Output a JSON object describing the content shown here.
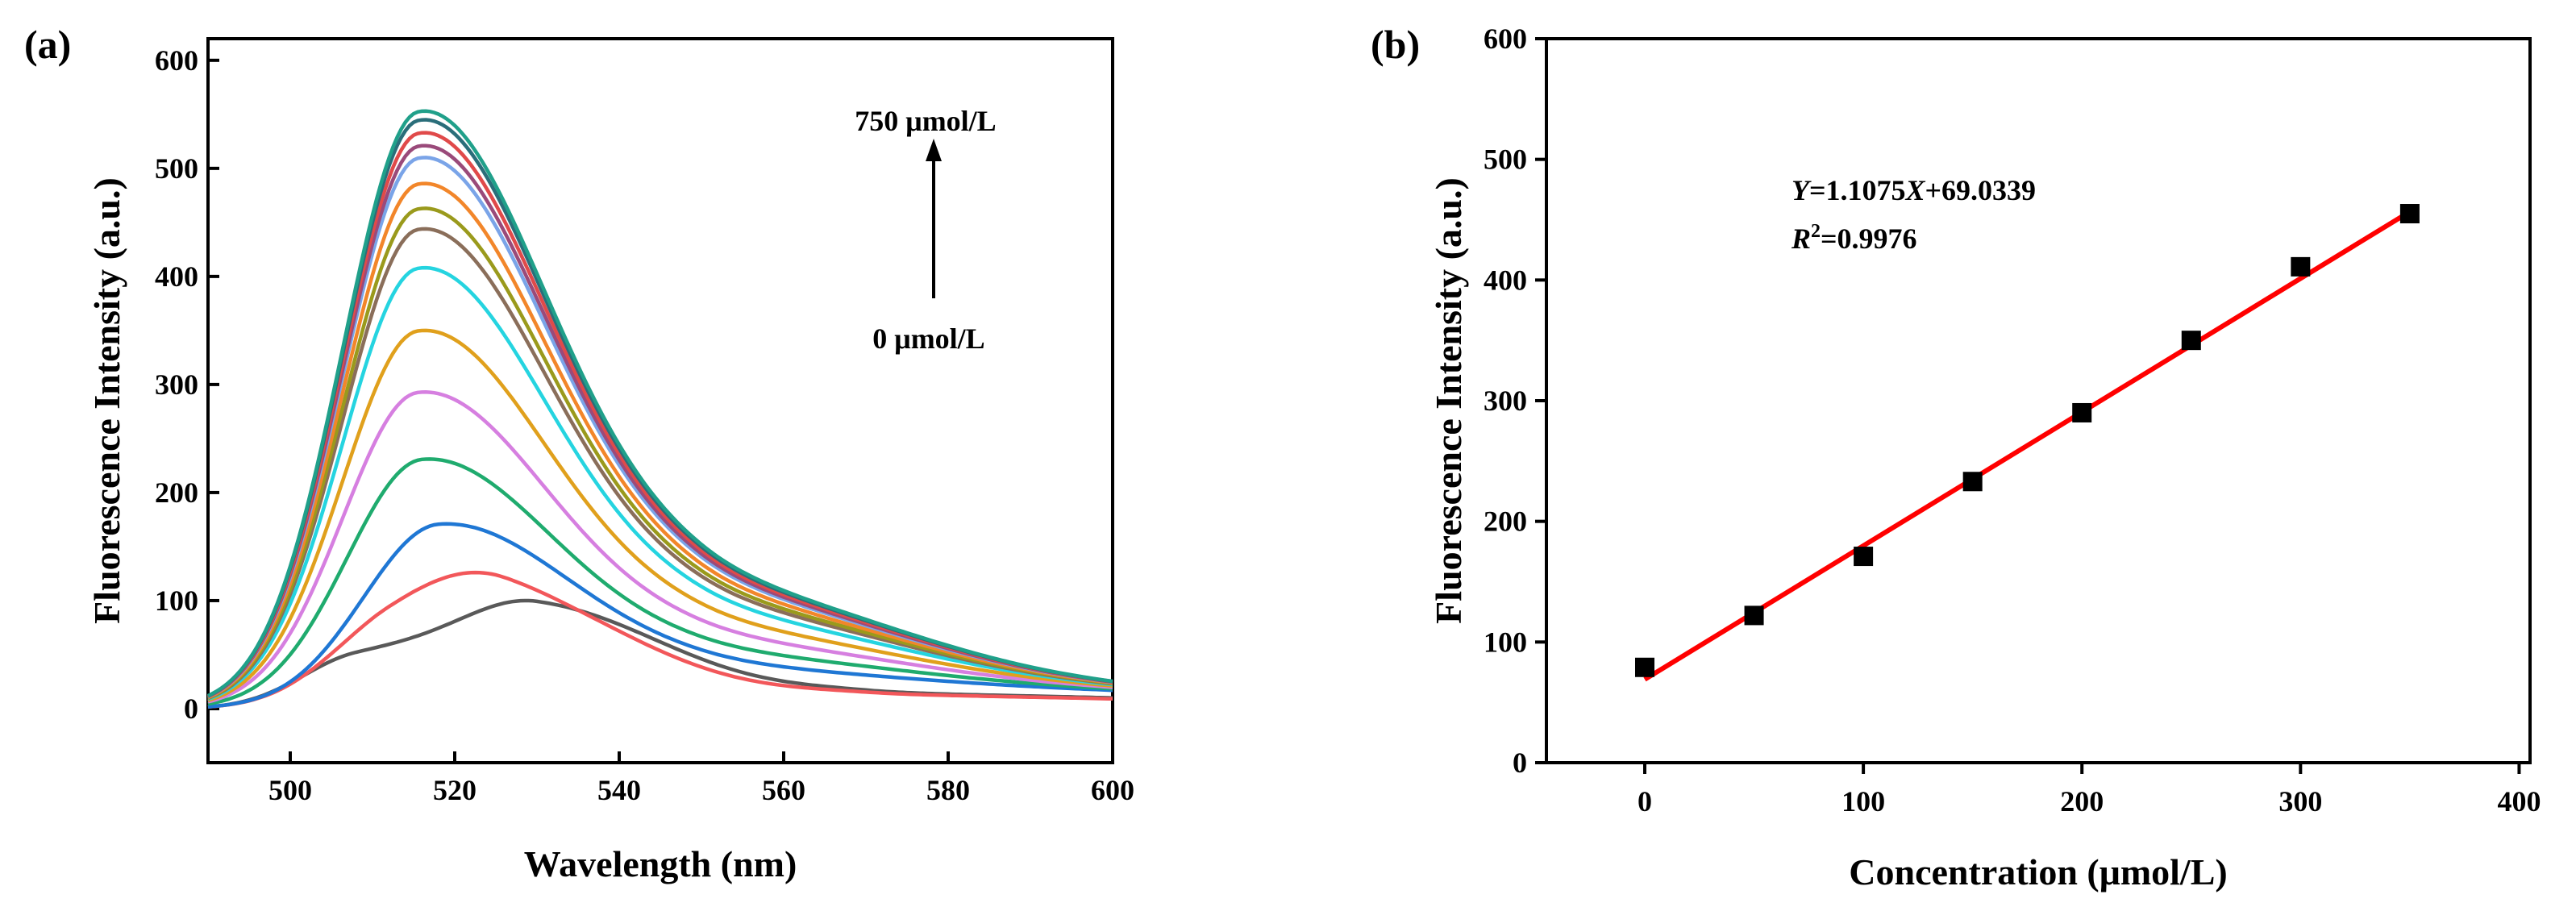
{
  "colors": {
    "axis": "#000000",
    "fit_line": "#ff0000",
    "marker": "#000000",
    "spectra": [
      "#595959",
      "#f2575a",
      "#1f77d4",
      "#1fab6e",
      "#d67fe0",
      "#e0a01c",
      "#25d4e0",
      "#8a6e5a",
      "#9a9a1c",
      "#f2862a",
      "#7aa4e8",
      "#9a4a7a",
      "#e04a4a",
      "#2a6e7a",
      "#20a08a"
    ]
  },
  "icons": {
    "arrow": "up-arrow-icon",
    "marker": "square-marker-icon"
  },
  "chart_data": [
    {
      "panel": "(a)",
      "type": "line",
      "xlabel": "Wavelength (nm)",
      "ylabel": "Fluorescence Intensity (a.u.)",
      "xlim": [
        490,
        600
      ],
      "ylim": [
        -50,
        620
      ],
      "xticks": [
        500,
        520,
        540,
        560,
        580,
        600
      ],
      "yticks": [
        0,
        100,
        200,
        300,
        400,
        500,
        600
      ],
      "annotations": {
        "top": "750 μmol/L",
        "bottom": "0 μmol/L"
      },
      "series_peaks": [
        {
          "name": "0 μmol/L",
          "peak_x": 530,
          "peak_y": 100
        },
        {
          "name": "s2",
          "peak_x": 524,
          "peak_y": 126
        },
        {
          "name": "s3",
          "peak_x": 518,
          "peak_y": 171
        },
        {
          "name": "s4",
          "peak_x": 516,
          "peak_y": 231
        },
        {
          "name": "s5",
          "peak_x": 515.5,
          "peak_y": 293
        },
        {
          "name": "s6",
          "peak_x": 515.5,
          "peak_y": 350
        },
        {
          "name": "s7",
          "peak_x": 515.5,
          "peak_y": 408
        },
        {
          "name": "s8",
          "peak_x": 515.5,
          "peak_y": 444
        },
        {
          "name": "s9",
          "peak_x": 515.5,
          "peak_y": 463
        },
        {
          "name": "s10",
          "peak_x": 515.5,
          "peak_y": 486
        },
        {
          "name": "s11",
          "peak_x": 515.5,
          "peak_y": 510
        },
        {
          "name": "s12",
          "peak_x": 515.5,
          "peak_y": 521
        },
        {
          "name": "s13",
          "peak_x": 515.5,
          "peak_y": 533
        },
        {
          "name": "s14",
          "peak_x": 515.5,
          "peak_y": 545
        },
        {
          "name": "750 μmol/L",
          "peak_x": 515.5,
          "peak_y": 553
        }
      ]
    },
    {
      "panel": "(b)",
      "type": "scatter",
      "xlabel": "Concentration (μmol/L)",
      "ylabel": "Fluorescence Intensity (a.u.)",
      "xlim": [
        -45,
        405
      ],
      "ylim": [
        0,
        600
      ],
      "xticks": [
        0,
        100,
        200,
        300,
        400
      ],
      "yticks": [
        0,
        100,
        200,
        300,
        400,
        500,
        600
      ],
      "x": [
        0,
        50,
        100,
        150,
        200,
        250,
        300,
        350
      ],
      "y": [
        79,
        122,
        171,
        233,
        290,
        350,
        411,
        455
      ],
      "fit": {
        "slope": 1.1075,
        "intercept": 69.0339,
        "x_range": [
          0,
          350
        ]
      },
      "equation": {
        "y_var": "Y",
        "equal_slope": "=1.1075",
        "x_var": "X",
        "intercept": "+69.0339"
      },
      "r2": {
        "r": "R",
        "sup": "2",
        "value": "=0.9976"
      }
    }
  ]
}
